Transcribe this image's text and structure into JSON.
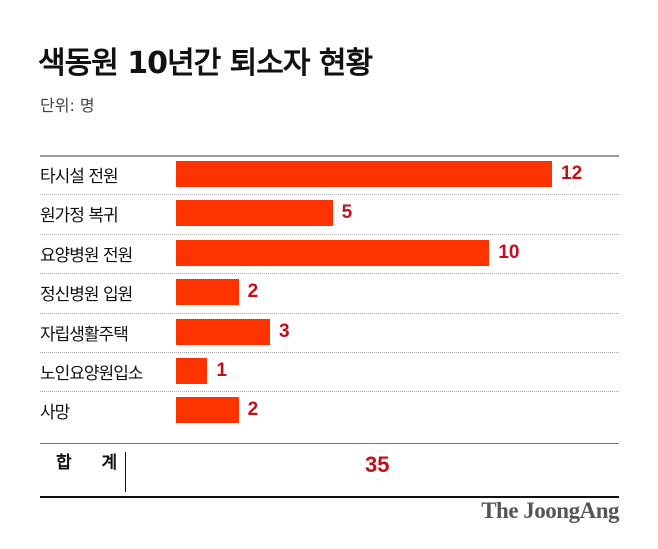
{
  "chart_data": {
    "type": "bar",
    "orientation": "horizontal",
    "title": "색동원 10년간 퇴소자 현황",
    "unit_label": "단위: 명",
    "categories": [
      "타시설 전원",
      "원가정 복귀",
      "요양병원 전원",
      "정신병원 입원",
      "자립생활주택",
      "노인요양원입소",
      "사망"
    ],
    "values": [
      12,
      5,
      10,
      2,
      3,
      1,
      2
    ],
    "total_label": "합 계",
    "total_value": "35",
    "bar_color": "#ff3300",
    "value_color": "#c0101a",
    "grid": false
  },
  "logo": "The JoongAng"
}
